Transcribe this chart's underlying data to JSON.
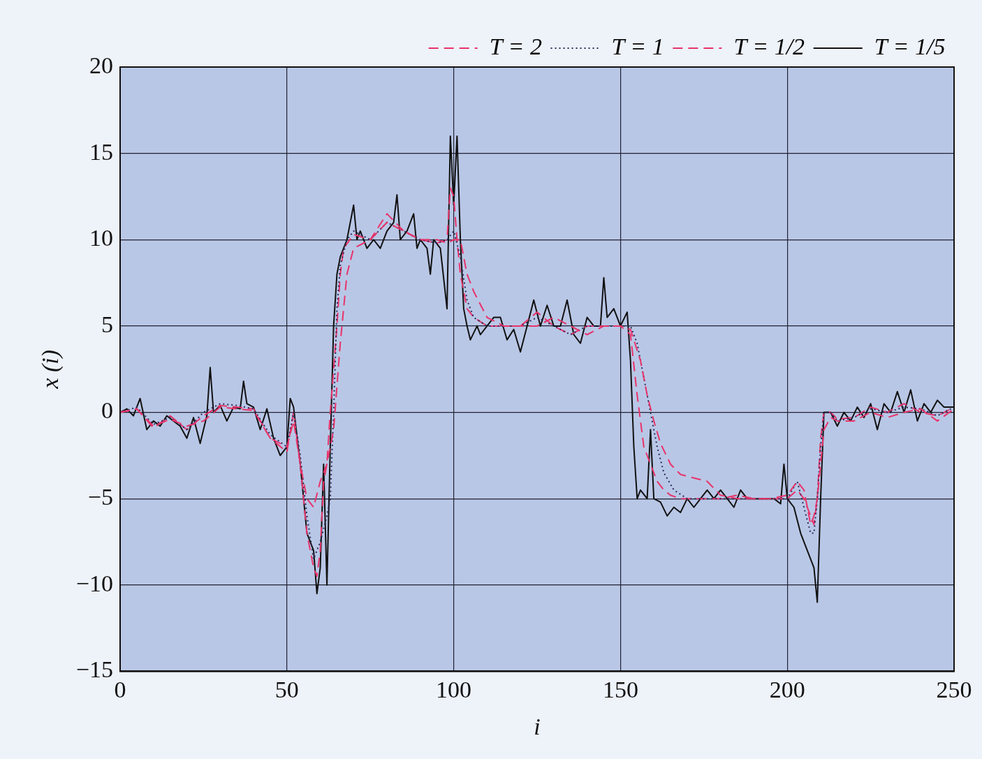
{
  "chart_data": {
    "type": "line",
    "xlabel": "i",
    "ylabel": "x (i)",
    "xlim": [
      0,
      250
    ],
    "xticks": [
      0,
      50,
      100,
      150,
      200,
      250
    ],
    "ylim": [
      -15,
      20
    ],
    "yticks": [
      -15,
      -10,
      -5,
      0,
      5,
      10,
      15,
      20
    ],
    "grid": true,
    "legend": "top right",
    "marker": "none",
    "series": [
      {
        "name": "T = 2",
        "color": "#e8336a",
        "line_style": "dashed",
        "x": [
          0,
          5,
          10,
          15,
          20,
          25,
          30,
          35,
          40,
          45,
          50,
          52,
          54,
          56,
          58,
          60,
          62,
          64,
          66,
          68,
          70,
          75,
          80,
          85,
          90,
          95,
          98,
          100,
          102,
          104,
          106,
          110,
          115,
          120,
          125,
          130,
          135,
          140,
          145,
          150,
          153,
          156,
          158,
          160,
          162,
          165,
          168,
          172,
          176,
          180,
          185,
          190,
          195,
          200,
          203,
          205,
          207,
          208,
          209,
          210,
          211,
          213,
          215,
          220,
          225,
          230,
          235,
          240,
          245,
          250
        ],
        "values": [
          0,
          0.2,
          -0.8,
          -0.4,
          -0.8,
          -0.5,
          0.3,
          0.2,
          0.1,
          -1.5,
          -2,
          -0.5,
          -3,
          -5,
          -5.5,
          -4,
          -3,
          -1,
          4,
          8,
          9.5,
          10,
          11,
          10.5,
          10,
          10,
          9.8,
          10,
          10,
          8,
          7,
          5.5,
          5,
          5,
          5,
          5.5,
          5,
          4.5,
          5,
          5,
          4.8,
          3,
          1,
          -0.5,
          -1.8,
          -3,
          -3.6,
          -3.8,
          -4,
          -4.8,
          -5,
          -5,
          -5,
          -4.8,
          -4,
          -4.5,
          -6.5,
          -6,
          -5,
          -3,
          -1,
          -0.3,
          -0.5,
          -0.5,
          0,
          -0.3,
          0,
          0.2,
          -0.5,
          0.2
        ]
      },
      {
        "name": "T = 1",
        "color": "#2a2a5a",
        "line_style": "dotted",
        "x": [
          0,
          5,
          10,
          15,
          20,
          25,
          30,
          35,
          40,
          45,
          50,
          52,
          54,
          56,
          58,
          60,
          62,
          63,
          64,
          65,
          66,
          68,
          70,
          75,
          80,
          85,
          90,
          95,
          98,
          100,
          102,
          104,
          106,
          110,
          115,
          120,
          125,
          130,
          135,
          140,
          145,
          150,
          153,
          155,
          157,
          159,
          161,
          163,
          166,
          170,
          175,
          180,
          185,
          190,
          195,
          200,
          203,
          205,
          207,
          208,
          209,
          210,
          211,
          213,
          215,
          220,
          225,
          230,
          235,
          240,
          245,
          250
        ],
        "values": [
          0,
          0.3,
          -0.7,
          -0.3,
          -1,
          0,
          0.5,
          0.4,
          0.2,
          -1.3,
          -2,
          0,
          -2.5,
          -6,
          -8.5,
          -7.5,
          -6,
          -5,
          0,
          6,
          8.5,
          10,
          10.5,
          10,
          11,
          10.5,
          10,
          9.8,
          10,
          10.5,
          9,
          6.5,
          5.5,
          5,
          5,
          5,
          5.5,
          5,
          4.5,
          5,
          5,
          5,
          5,
          4,
          2,
          0,
          -2,
          -3.5,
          -4.5,
          -5,
          -5,
          -5,
          -5,
          -5,
          -5,
          -5,
          -4,
          -5.5,
          -7,
          -7,
          -5,
          -2,
          0,
          0,
          -0.5,
          -0.3,
          0.2,
          0,
          0.3,
          0.2,
          -0.2,
          0.3
        ]
      },
      {
        "name": "T = 1/2",
        "color": "#e8336a",
        "line_style": "dashed",
        "x": [
          0,
          5,
          10,
          15,
          20,
          25,
          30,
          35,
          40,
          45,
          50,
          52,
          54,
          56,
          58,
          59,
          60,
          61,
          62,
          63,
          64,
          65,
          66,
          67,
          70,
          75,
          80,
          85,
          90,
          95,
          98,
          99,
          100,
          101,
          102,
          104,
          106,
          110,
          115,
          120,
          125,
          130,
          135,
          140,
          145,
          150,
          153,
          155,
          157,
          159,
          161,
          163,
          165,
          168,
          172,
          176,
          180,
          185,
          190,
          195,
          200,
          203,
          205,
          207,
          208,
          209,
          210,
          211,
          213,
          215,
          220,
          225,
          230,
          235,
          240,
          245,
          250
        ],
        "values": [
          0,
          0.2,
          -0.9,
          -0.2,
          -1,
          -0.2,
          0.4,
          0.3,
          0.2,
          -1.5,
          -2.3,
          0,
          -3,
          -7,
          -9,
          -9.5,
          -8,
          -4,
          -3,
          0,
          2.5,
          5,
          8,
          9.5,
          10.3,
          10,
          11.5,
          10.5,
          10,
          9.8,
          10,
          13,
          12.5,
          10,
          8,
          6,
          5.5,
          5,
          5,
          5,
          5.8,
          5,
          4.5,
          5,
          5,
          5,
          4.5,
          1,
          -2,
          -3,
          -4,
          -4.5,
          -4.8,
          -5,
          -5,
          -5,
          -5,
          -4.8,
          -5,
          -5,
          -5,
          -4.5,
          -5,
          -6,
          -6.5,
          -5,
          -1.5,
          0,
          0,
          -0.4,
          -0.3,
          0.3,
          0,
          0.5,
          0,
          -0.2,
          0.3
        ]
      },
      {
        "name": "T = 1/5",
        "color": "#111111",
        "line_style": "solid",
        "x": [
          0,
          2,
          4,
          6,
          8,
          10,
          12,
          14,
          16,
          18,
          20,
          22,
          24,
          26,
          27,
          28,
          30,
          32,
          34,
          36,
          37,
          38,
          40,
          42,
          44,
          46,
          48,
          50,
          51,
          52,
          54,
          56,
          58,
          59,
          60,
          61,
          62,
          63,
          64,
          65,
          66,
          68,
          70,
          71,
          72,
          74,
          76,
          78,
          80,
          82,
          83,
          84,
          86,
          88,
          89,
          90,
          92,
          93,
          94,
          96,
          98,
          99,
          100,
          101,
          102,
          103,
          104,
          105,
          107,
          108,
          110,
          112,
          114,
          116,
          118,
          120,
          122,
          124,
          126,
          128,
          130,
          132,
          134,
          136,
          138,
          140,
          142,
          144,
          145,
          146,
          148,
          150,
          152,
          153,
          154,
          155,
          156,
          158,
          159,
          160,
          162,
          164,
          166,
          168,
          170,
          172,
          174,
          176,
          178,
          180,
          182,
          184,
          186,
          188,
          190,
          192,
          194,
          196,
          198,
          199,
          200,
          202,
          204,
          206,
          208,
          209,
          210,
          211,
          213,
          215,
          217,
          219,
          221,
          223,
          225,
          227,
          229,
          231,
          233,
          235,
          237,
          239,
          241,
          243,
          245,
          247,
          250
        ],
        "values": [
          0,
          0.2,
          -0.2,
          0.8,
          -1,
          -0.5,
          -0.8,
          -0.2,
          -0.5,
          -0.8,
          -1.5,
          -0.3,
          -1.8,
          -0.2,
          2.6,
          0,
          0.4,
          -0.5,
          0.3,
          0.2,
          1.8,
          0.5,
          0.3,
          -1,
          0.2,
          -1.5,
          -2.5,
          -2,
          0.8,
          0.3,
          -3,
          -7,
          -8,
          -10.5,
          -9,
          -3,
          -10,
          -2,
          5,
          8,
          9,
          10,
          12,
          10,
          10.5,
          9.5,
          10,
          9.5,
          10.5,
          11,
          12.6,
          10,
          10.5,
          11.5,
          9.5,
          10,
          9.5,
          8,
          10,
          9.5,
          6,
          16,
          12,
          16,
          10,
          6,
          5,
          4.2,
          5,
          4.5,
          5,
          5.5,
          5.5,
          4.2,
          4.8,
          3.5,
          5,
          6.5,
          5,
          6.2,
          5,
          5,
          6.5,
          4.5,
          4,
          5.5,
          5,
          5,
          7.8,
          5.5,
          6,
          5,
          5.8,
          3,
          -2,
          -5,
          -4.5,
          -5,
          -1,
          -5,
          -5.2,
          -6,
          -5.5,
          -5.8,
          -5,
          -5.5,
          -5,
          -4.5,
          -5,
          -4.5,
          -5,
          -5.5,
          -4.5,
          -5,
          -5,
          -5,
          -5,
          -5,
          -5.3,
          -3,
          -5,
          -5.5,
          -7,
          -8,
          -9,
          -11,
          -5,
          0,
          0,
          -0.8,
          0,
          -0.5,
          0.3,
          -0.3,
          0.5,
          -1,
          0.5,
          0,
          1.2,
          0,
          1.3,
          -0.5,
          0.5,
          0,
          0.7,
          0.3,
          0.3
        ]
      }
    ]
  }
}
